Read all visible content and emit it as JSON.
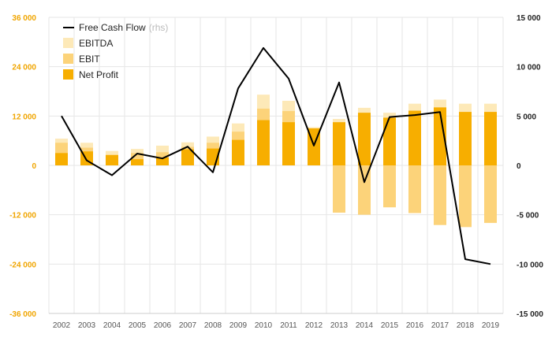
{
  "chart_data": {
    "type": "bar",
    "categories": [
      "2002",
      "2003",
      "2004",
      "2005",
      "2006",
      "2007",
      "2008",
      "2009",
      "2010",
      "2011",
      "2012",
      "2013",
      "2014",
      "2015",
      "2016",
      "2017",
      "2018",
      "2019"
    ],
    "series": [
      {
        "name": "EBITDA",
        "axis": "left",
        "color": "#fde9b8",
        "values": [
          6500,
          5500,
          3500,
          4000,
          4800,
          5600,
          7000,
          10200,
          17200,
          15700,
          9300,
          11300,
          14000,
          12800,
          15000,
          16000,
          15000,
          15000
        ]
      },
      {
        "name": "EBIT",
        "axis": "left",
        "color": "#fcd37a",
        "values": [
          5500,
          4300,
          2600,
          3000,
          3200,
          4500,
          5500,
          8200,
          13800,
          13200,
          8800,
          -11500,
          -12000,
          -10200,
          -11600,
          -14500,
          -15000,
          -14000
        ]
      },
      {
        "name": "Net Profit",
        "axis": "left",
        "color": "#f7ae00",
        "values": [
          3000,
          3400,
          2500,
          1500,
          1900,
          3900,
          4100,
          6200,
          11000,
          10500,
          9000,
          10500,
          12800,
          11600,
          13300,
          14100,
          13000,
          13000
        ]
      },
      {
        "name": "Free Cash Flow",
        "axis": "right",
        "type": "line",
        "color": "#000000",
        "values": [
          5000,
          500,
          -1000,
          1200,
          700,
          1900,
          -700,
          7800,
          11900,
          8800,
          2000,
          8400,
          -1700,
          4900,
          5100,
          5400,
          -9500,
          -10000
        ]
      }
    ],
    "left_axis": {
      "min": -36000,
      "max": 36000,
      "ticks": [
        36000,
        24000,
        12000,
        0,
        -12000,
        -24000,
        -36000
      ],
      "tick_labels": [
        "36 000",
        "24 000",
        "12 000",
        "0",
        "-12 000",
        "-24 000",
        "-36 000"
      ]
    },
    "right_axis": {
      "min": -15000,
      "max": 15000,
      "ticks": [
        15000,
        10000,
        5000,
        0,
        -5000,
        -10000,
        -15000
      ],
      "tick_labels": [
        "15 000",
        "10 000",
        "5 000",
        "0",
        "-5 000",
        "-10 000",
        "-15 000"
      ]
    },
    "legend": {
      "placement": "top-left",
      "items": [
        {
          "label": "Free Cash Flow",
          "suffix": "(rhs)",
          "kind": "line",
          "color": "#000000"
        },
        {
          "label": "EBITDA",
          "kind": "box",
          "color": "#fde9b8"
        },
        {
          "label": "EBIT",
          "kind": "box",
          "color": "#fcd37a"
        },
        {
          "label": "Net Profit",
          "kind": "box",
          "color": "#f7ae00"
        }
      ]
    },
    "grid": true,
    "colors": {
      "left_tick": "#f0a500",
      "right_tick": "#222222",
      "grid": "#e6e6e6"
    }
  }
}
